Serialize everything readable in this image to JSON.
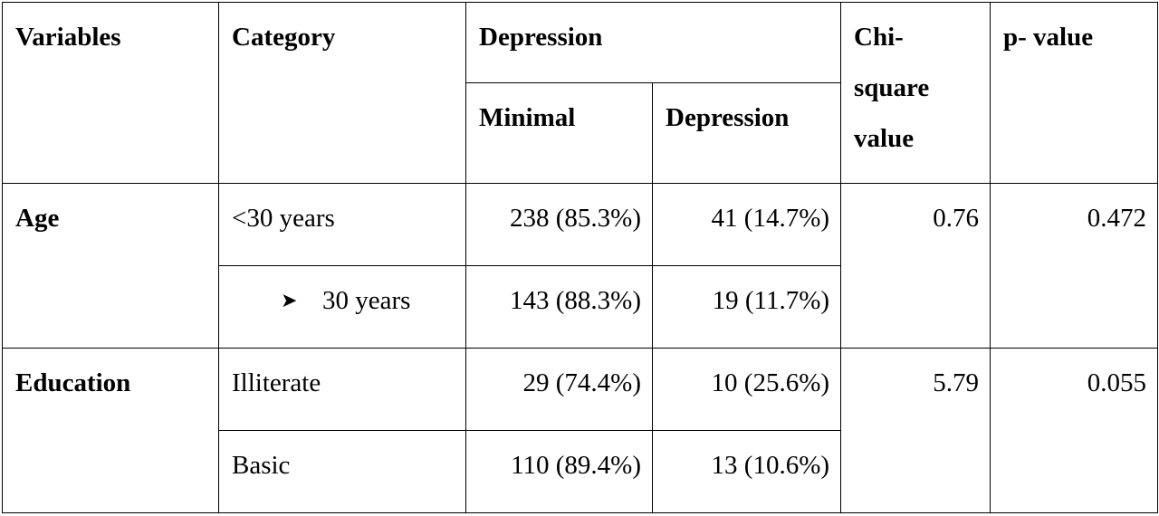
{
  "header": {
    "variables": "Variables",
    "category": "Category",
    "depression_group": "Depression",
    "minimal": "Minimal",
    "depression": "Depression",
    "chi_square": "Chi-square value",
    "p_value": "p- value"
  },
  "rows": [
    {
      "variable": "Age",
      "chi_square": "0.76",
      "p_value": "0.472",
      "categories": [
        {
          "label": "<30 years",
          "minimal": "238 (85.3%)",
          "depression": "41 (14.7%)"
        },
        {
          "label": "30 years",
          "minimal": "143 (88.3%)",
          "depression": "19 (11.7%)"
        }
      ]
    },
    {
      "variable": "Education",
      "chi_square": "5.79",
      "p_value": "0.055",
      "categories": [
        {
          "label": "Illiterate",
          "minimal": "29 (74.4%)",
          "depression": "10 (25.6%)"
        },
        {
          "label": "Basic",
          "minimal": "110 (89.4%)",
          "depression": "13 (10.6%)"
        }
      ]
    }
  ],
  "icons": {
    "arrow": "arrow-bullet-icon"
  }
}
